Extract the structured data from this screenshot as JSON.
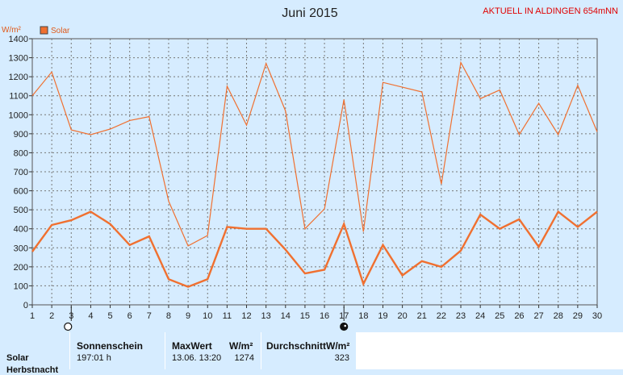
{
  "header": {
    "title": "Juni 2015",
    "station": "AKTUELL IN ALDINGEN 654mNN",
    "unit": "W/m²",
    "legend": "Solar"
  },
  "colors": {
    "series": "#f07030",
    "legend_box": "#f07030",
    "plot_bg": "#d6ecff",
    "grid": "#777777",
    "station": "#e00000"
  },
  "chart_data": {
    "type": "line",
    "title": "Juni 2015",
    "ylabel": "W/m²",
    "xlabel": "",
    "ylim": [
      0,
      1400
    ],
    "xlim": [
      1,
      30
    ],
    "yticks": [
      0,
      100,
      200,
      300,
      400,
      500,
      600,
      700,
      800,
      900,
      1000,
      1100,
      1200,
      1300,
      1400
    ],
    "x": [
      1,
      2,
      3,
      4,
      5,
      6,
      7,
      8,
      9,
      10,
      11,
      12,
      13,
      14,
      15,
      16,
      17,
      18,
      19,
      20,
      21,
      22,
      23,
      24,
      25,
      26,
      27,
      28,
      29,
      30
    ],
    "grid": true,
    "legend_position": "top-left",
    "markers": [
      {
        "x": 3,
        "symbol": "full-moon"
      },
      {
        "x": 17,
        "symbol": "new-moon"
      }
    ],
    "series": [
      {
        "name": "Solar",
        "style": "thin",
        "values": [
          1100,
          1225,
          920,
          895,
          925,
          970,
          990,
          545,
          310,
          365,
          1150,
          945,
          1270,
          1020,
          400,
          505,
          1080,
          385,
          1170,
          1145,
          1120,
          635,
          1275,
          1085,
          1130,
          895,
          1060,
          895,
          1155,
          910
        ]
      },
      {
        "name": "",
        "style": "thick",
        "values": [
          280,
          420,
          445,
          490,
          425,
          315,
          360,
          135,
          95,
          135,
          410,
          400,
          400,
          290,
          165,
          185,
          425,
          110,
          315,
          155,
          230,
          200,
          285,
          475,
          400,
          450,
          305,
          490,
          410,
          490
        ]
      }
    ]
  },
  "stats": {
    "row_label": "Solar",
    "row_label_2": "Herbstnacht",
    "sonnenschein_label": "Sonnenschein",
    "sonnenschein_value": "197:01 h",
    "maxwert_label": "MaxWert",
    "maxwert_unit": "W/m²",
    "maxwert_date": "13.06.  13:20",
    "maxwert_value": "1274",
    "durchschnitt_label": "Durchschnitt",
    "durchschnitt_unit": "W/m²",
    "durchschnitt_value": "323"
  }
}
